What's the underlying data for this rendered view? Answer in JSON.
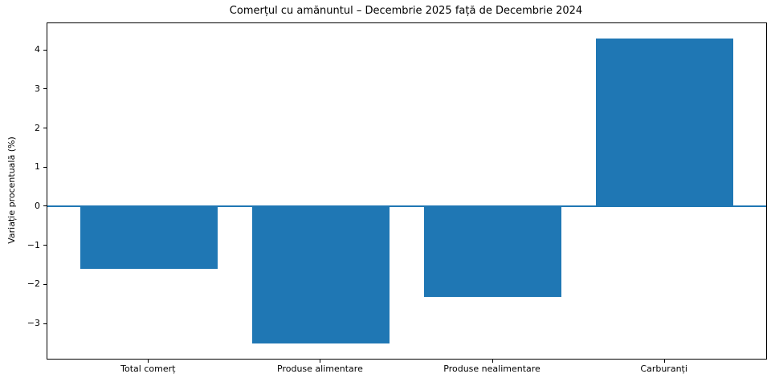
{
  "chart_data": {
    "type": "bar",
    "title": "Comerțul cu amănuntul – Decembrie 2025 față de Decembrie 2024",
    "xlabel": "",
    "ylabel": "Variație procentuală (%)",
    "categories": [
      "Total comerț",
      "Produse alimentare",
      "Produse nealimentare",
      "Carburanți"
    ],
    "values": [
      -1.6,
      -3.5,
      -2.3,
      4.3
    ],
    "yticks": [
      4,
      3,
      2,
      1,
      0,
      -1,
      -2,
      -3
    ],
    "ylim": [
      -3.89,
      4.69
    ],
    "xlim": [
      -0.59,
      3.59
    ],
    "bar_width": 0.8,
    "bar_color": "#1f77b4",
    "zero_line_color": "#1f77b4",
    "grid": false,
    "legend_position": "none"
  }
}
